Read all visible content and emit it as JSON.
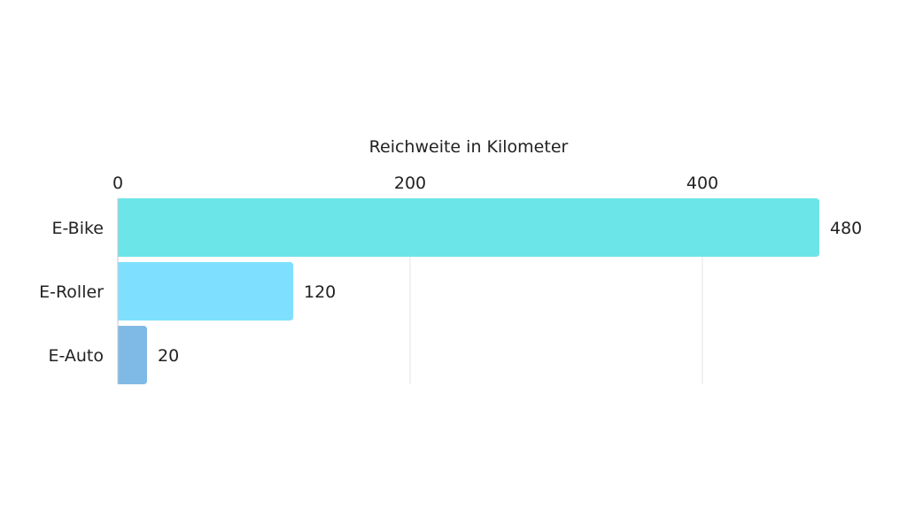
{
  "chart_data": {
    "type": "bar",
    "orientation": "horizontal",
    "title": "",
    "xlabel": "Reichweite in Kilometer",
    "ylabel": "",
    "x_axis_position": "top",
    "xlim": [
      0,
      480
    ],
    "ticks": [
      0,
      200,
      400
    ],
    "grid": true,
    "categories": [
      "E-Bike",
      "E-Roller",
      "E-Auto"
    ],
    "values": [
      480,
      120,
      20
    ],
    "value_labels": [
      "480",
      "120",
      "20"
    ],
    "colors": [
      "#6ce5e8",
      "#7ee0fe",
      "#7fbae6"
    ],
    "gridline_color": "#e6e6e6",
    "axis_color": "#c8c8c8"
  }
}
